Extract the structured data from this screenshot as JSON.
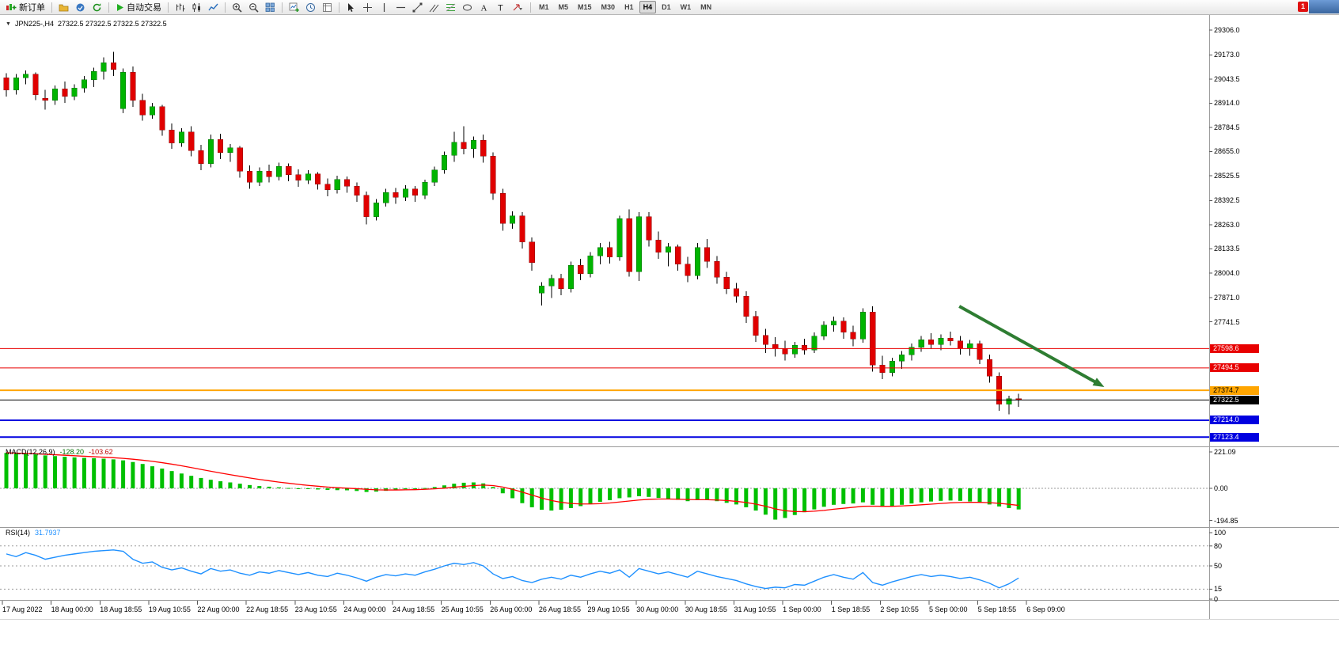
{
  "toolbar": {
    "notification_count": "1",
    "groups": [
      {
        "items": [
          {
            "name": "new-order",
            "icon": "new-order",
            "label": "新订单"
          }
        ]
      },
      {
        "items": [
          {
            "name": "charts-profile",
            "icon": "profile-yellow"
          },
          {
            "name": "market-watch",
            "icon": "quotes-blue"
          },
          {
            "name": "refresh",
            "icon": "refresh-green"
          }
        ]
      },
      {
        "items": [
          {
            "name": "auto-trading",
            "icon": "play-green",
            "label": "自动交易"
          }
        ]
      },
      {
        "items": [
          {
            "name": "bar-chart",
            "icon": "bars"
          },
          {
            "name": "candlestick-chart",
            "icon": "candles"
          },
          {
            "name": "line-chart",
            "icon": "line"
          }
        ]
      },
      {
        "items": [
          {
            "name": "zoom-in",
            "icon": "zoom-in"
          },
          {
            "name": "zoom-out",
            "icon": "zoom-out"
          },
          {
            "name": "tile-windows",
            "icon": "tile"
          }
        ]
      },
      {
        "items": [
          {
            "name": "new-chart",
            "icon": "chart-plus"
          },
          {
            "name": "period",
            "icon": "clock"
          },
          {
            "name": "templates",
            "icon": "template"
          }
        ]
      },
      {
        "items": [
          {
            "name": "cursor",
            "icon": "cursor"
          },
          {
            "name": "crosshair",
            "icon": "crosshair"
          },
          {
            "name": "vertical-line",
            "icon": "vline"
          },
          {
            "name": "horizontal-line",
            "icon": "hline"
          },
          {
            "name": "trendline",
            "icon": "trend"
          },
          {
            "name": "equidistant-channel",
            "icon": "channel"
          },
          {
            "name": "fibonacci",
            "icon": "fibo"
          },
          {
            "name": "shapes",
            "icon": "shapes"
          },
          {
            "name": "text",
            "icon": "text-a"
          },
          {
            "name": "text-label",
            "icon": "text-t"
          },
          {
            "name": "arrows",
            "icon": "arrows"
          }
        ]
      }
    ],
    "timeframes": [
      {
        "label": "M1",
        "active": false
      },
      {
        "label": "M5",
        "active": false
      },
      {
        "label": "M15",
        "active": false
      },
      {
        "label": "M30",
        "active": false
      },
      {
        "label": "H1",
        "active": false
      },
      {
        "label": "H4",
        "active": true
      },
      {
        "label": "D1",
        "active": false
      },
      {
        "label": "W1",
        "active": false
      },
      {
        "label": "MN",
        "active": false
      }
    ]
  },
  "chart": {
    "header": {
      "collapse_icon": "▼",
      "symbol_period": "JPN225-,H4",
      "ohlc": "27322.5 27322.5 27322.5 27322.5"
    }
  },
  "chart_data": {
    "type": "candlestick",
    "symbol": "JPN225-",
    "period": "H4",
    "quote": {
      "open": "27322.5",
      "high": "27322.5",
      "low": "27322.5",
      "close": "27322.5"
    },
    "colors": {
      "bull": "#00B400",
      "bear": "#E00000",
      "wick": "#000000"
    },
    "price_axis": {
      "min": 27078,
      "max": 29374,
      "ticks": [
        "29306.0",
        "29173.0",
        "29043.5",
        "28914.0",
        "28784.5",
        "28655.0",
        "28525.5",
        "28392.5",
        "28263.0",
        "28133.5",
        "28004.0",
        "27871.0",
        "27741.5"
      ]
    },
    "time_axis": {
      "labels": [
        "17 Aug 2022",
        "18 Aug 00:00",
        "18 Aug 18:55",
        "19 Aug 10:55",
        "22 Aug 00:00",
        "22 Aug 18:55",
        "23 Aug 10:55",
        "24 Aug 00:00",
        "24 Aug 18:55",
        "25 Aug 10:55",
        "26 Aug 00:00",
        "26 Aug 18:55",
        "29 Aug 10:55",
        "30 Aug 00:00",
        "30 Aug 18:55",
        "31 Aug 10:55",
        "1 Sep 00:00",
        "1 Sep 18:55",
        "2 Sep 10:55",
        "5 Sep 00:00",
        "5 Sep 18:55",
        "6 Sep 09:00"
      ]
    },
    "candles": [
      [
        29050,
        29075,
        28950,
        28985
      ],
      [
        28985,
        29070,
        28960,
        29050
      ],
      [
        29050,
        29090,
        29015,
        29070
      ],
      [
        29070,
        29080,
        28930,
        28960
      ],
      [
        28940,
        28985,
        28880,
        28930
      ],
      [
        28930,
        29010,
        28905,
        28990
      ],
      [
        28990,
        29030,
        28915,
        28950
      ],
      [
        28950,
        29015,
        28930,
        28995
      ],
      [
        28995,
        29060,
        28970,
        29040
      ],
      [
        29040,
        29105,
        29000,
        29085
      ],
      [
        29085,
        29160,
        29040,
        29130
      ],
      [
        29130,
        29190,
        29060,
        29095
      ],
      [
        28885,
        29100,
        28860,
        29080
      ],
      [
        29080,
        29110,
        28895,
        28930
      ],
      [
        28930,
        28965,
        28820,
        28850
      ],
      [
        28850,
        28915,
        28830,
        28895
      ],
      [
        28895,
        28905,
        28740,
        28770
      ],
      [
        28770,
        28805,
        28670,
        28700
      ],
      [
        28700,
        28780,
        28680,
        28760
      ],
      [
        28760,
        28790,
        28630,
        28660
      ],
      [
        28660,
        28690,
        28555,
        28590
      ],
      [
        28590,
        28745,
        28570,
        28720
      ],
      [
        28720,
        28750,
        28615,
        28650
      ],
      [
        28650,
        28695,
        28600,
        28675
      ],
      [
        28675,
        28685,
        28515,
        28550
      ],
      [
        28550,
        28580,
        28455,
        28490
      ],
      [
        28490,
        28570,
        28470,
        28550
      ],
      [
        28550,
        28585,
        28490,
        28520
      ],
      [
        28520,
        28595,
        28500,
        28575
      ],
      [
        28575,
        28590,
        28495,
        28530
      ],
      [
        28530,
        28560,
        28465,
        28500
      ],
      [
        28500,
        28555,
        28480,
        28535
      ],
      [
        28535,
        28545,
        28450,
        28480
      ],
      [
        28480,
        28510,
        28415,
        28450
      ],
      [
        28450,
        28525,
        28430,
        28505
      ],
      [
        28505,
        28520,
        28435,
        28470
      ],
      [
        28470,
        28490,
        28385,
        28420
      ],
      [
        28420,
        28440,
        28265,
        28305
      ],
      [
        28305,
        28400,
        28285,
        28380
      ],
      [
        28380,
        28455,
        28360,
        28435
      ],
      [
        28435,
        28460,
        28375,
        28410
      ],
      [
        28410,
        28475,
        28390,
        28455
      ],
      [
        28455,
        28470,
        28385,
        28420
      ],
      [
        28420,
        28505,
        28400,
        28490
      ],
      [
        28490,
        28575,
        28470,
        28555
      ],
      [
        28555,
        28655,
        28535,
        28635
      ],
      [
        28635,
        28760,
        28600,
        28705
      ],
      [
        28705,
        28790,
        28640,
        28670
      ],
      [
        28670,
        28735,
        28620,
        28715
      ],
      [
        28715,
        28745,
        28595,
        28630
      ],
      [
        28630,
        28650,
        28395,
        28430
      ],
      [
        28430,
        28455,
        28230,
        28270
      ],
      [
        28270,
        28335,
        28240,
        28310
      ],
      [
        28310,
        28330,
        28135,
        28170
      ],
      [
        28170,
        28195,
        28015,
        28060
      ],
      [
        27895,
        27955,
        27830,
        27935
      ],
      [
        27935,
        27995,
        27870,
        27975
      ],
      [
        27975,
        28000,
        27885,
        27920
      ],
      [
        27920,
        28065,
        27900,
        28045
      ],
      [
        28045,
        28080,
        27965,
        28000
      ],
      [
        28000,
        28115,
        27980,
        28095
      ],
      [
        28095,
        28165,
        28050,
        28140
      ],
      [
        28140,
        28170,
        28055,
        28090
      ],
      [
        28090,
        28310,
        28070,
        28295
      ],
      [
        28295,
        28345,
        27985,
        28010
      ],
      [
        28010,
        28330,
        27960,
        28305
      ],
      [
        28305,
        28330,
        28145,
        28180
      ],
      [
        28180,
        28225,
        28080,
        28115
      ],
      [
        28115,
        28165,
        28040,
        28145
      ],
      [
        28145,
        28155,
        28015,
        28050
      ],
      [
        28050,
        28090,
        27955,
        27990
      ],
      [
        27990,
        28165,
        27970,
        28140
      ],
      [
        28140,
        28185,
        28030,
        28065
      ],
      [
        28065,
        28095,
        27945,
        27980
      ],
      [
        27980,
        28010,
        27890,
        27920
      ],
      [
        27920,
        27950,
        27845,
        27880
      ],
      [
        27880,
        27905,
        27735,
        27770
      ],
      [
        27770,
        27800,
        27635,
        27670
      ],
      [
        27670,
        27705,
        27575,
        27620
      ],
      [
        27620,
        27660,
        27555,
        27600
      ],
      [
        27600,
        27640,
        27535,
        27570
      ],
      [
        27570,
        27635,
        27550,
        27615
      ],
      [
        27615,
        27650,
        27565,
        27590
      ],
      [
        27590,
        27685,
        27575,
        27665
      ],
      [
        27665,
        27745,
        27645,
        27725
      ],
      [
        27725,
        27770,
        27690,
        27745
      ],
      [
        27745,
        27765,
        27650,
        27685
      ],
      [
        27685,
        27720,
        27610,
        27650
      ],
      [
        27650,
        27815,
        27630,
        27795
      ],
      [
        27795,
        27825,
        27475,
        27510
      ],
      [
        27510,
        27560,
        27435,
        27470
      ],
      [
        27470,
        27550,
        27450,
        27530
      ],
      [
        27530,
        27585,
        27490,
        27565
      ],
      [
        27565,
        27625,
        27535,
        27605
      ],
      [
        27605,
        27665,
        27580,
        27645
      ],
      [
        27645,
        27680,
        27595,
        27620
      ],
      [
        27620,
        27675,
        27590,
        27655
      ],
      [
        27655,
        27690,
        27615,
        27640
      ],
      [
        27640,
        27665,
        27565,
        27600
      ],
      [
        27600,
        27645,
        27560,
        27625
      ],
      [
        27625,
        27640,
        27515,
        27540
      ],
      [
        27540,
        27565,
        27415,
        27450
      ],
      [
        27450,
        27470,
        27265,
        27300
      ],
      [
        27300,
        27345,
        27245,
        27330
      ],
      [
        27330,
        27355,
        27285,
        27322.5
      ]
    ],
    "price_lines": [
      {
        "value": 27598.6,
        "label": "27598.6",
        "color": "#E80000",
        "text": "#ffffff",
        "width": 1,
        "role": "resistance-line"
      },
      {
        "value": 27494.5,
        "label": "27494.5",
        "color": "#E80000",
        "text": "#ffffff",
        "width": 1,
        "role": "resistance-line"
      },
      {
        "value": 27374.7,
        "label": "27374.7",
        "color": "#FFA500",
        "text": "#000000",
        "width": 2,
        "role": "support-line"
      },
      {
        "value": 27322.5,
        "label": "27322.5",
        "color": "#000000",
        "text": "#ffffff",
        "width": 1,
        "role": "current-price-line"
      },
      {
        "value": 27214.0,
        "label": "27214.0",
        "color": "#0000E0",
        "text": "#ffffff",
        "width": 2,
        "role": "support-line"
      },
      {
        "value": 27123.4,
        "label": "27123.4",
        "color": "#0000E0",
        "text": "#ffffff",
        "width": 2,
        "role": "support-line"
      }
    ],
    "macd": {
      "label": "MACD(12,26,9)",
      "value_main": "-128.20",
      "value_signal": "-103.62",
      "scale_ticks": [
        "221.09",
        "0.00",
        "-194.85"
      ],
      "colors": {
        "histogram": "#00C000",
        "signal": "#FF0000"
      },
      "histogram": [
        215,
        212,
        210,
        206,
        200,
        196,
        192,
        188,
        185,
        183,
        180,
        176,
        170,
        160,
        148,
        134,
        120,
        105,
        90,
        76,
        63,
        52,
        43,
        36,
        28,
        20,
        14,
        10,
        6,
        2,
        -2,
        -4,
        -7,
        -10,
        -11,
        -12,
        -16,
        -22,
        -20,
        -15,
        -10,
        -6,
        -3,
        2,
        8,
        18,
        28,
        34,
        36,
        30,
        8,
        -30,
        -60,
        -90,
        -115,
        -130,
        -135,
        -130,
        -120,
        -108,
        -95,
        -82,
        -72,
        -60,
        -55,
        -48,
        -52,
        -58,
        -63,
        -70,
        -78,
        -72,
        -70,
        -78,
        -88,
        -98,
        -115,
        -135,
        -160,
        -190,
        -180,
        -162,
        -145,
        -128,
        -112,
        -100,
        -95,
        -92,
        -85,
        -100,
        -112,
        -108,
        -100,
        -92,
        -85,
        -80,
        -76,
        -74,
        -76,
        -80,
        -88,
        -98,
        -110,
        -120,
        -128.2
      ],
      "signal": [
        216,
        214,
        212,
        210,
        207,
        204,
        201,
        198,
        195,
        192,
        189,
        186,
        182,
        177,
        171,
        164,
        156,
        147,
        137,
        126,
        115,
        104,
        93,
        83,
        73,
        63,
        54,
        46,
        38,
        31,
        24,
        18,
        13,
        8,
        4,
        1,
        -2,
        -6,
        -9,
        -10,
        -10,
        -9,
        -8,
        -6,
        -3,
        1,
        7,
        12,
        17,
        20,
        17,
        8,
        -6,
        -23,
        -41,
        -59,
        -74,
        -85,
        -92,
        -95,
        -95,
        -93,
        -89,
        -83,
        -77,
        -71,
        -67,
        -65,
        -65,
        -66,
        -68,
        -69,
        -69,
        -71,
        -74,
        -79,
        -86,
        -96,
        -109,
        -125,
        -136,
        -141,
        -142,
        -139,
        -134,
        -127,
        -121,
        -115,
        -109,
        -108,
        -109,
        -109,
        -107,
        -104,
        -100,
        -96,
        -92,
        -88,
        -86,
        -85,
        -85,
        -87,
        -91,
        -97,
        -103.62
      ]
    },
    "rsi": {
      "label": "RSI(14)",
      "value": "31.7937",
      "color": "#1E90FF",
      "levels": [
        80,
        50,
        15
      ],
      "scale_ticks": [
        "100",
        "80",
        "50",
        "15",
        "0"
      ],
      "values": [
        68,
        64,
        70,
        66,
        60,
        63,
        66,
        68,
        70,
        72,
        73,
        74,
        72,
        60,
        54,
        56,
        48,
        44,
        47,
        42,
        38,
        46,
        42,
        44,
        39,
        36,
        41,
        39,
        43,
        40,
        37,
        40,
        36,
        34,
        39,
        36,
        32,
        27,
        33,
        37,
        35,
        38,
        36,
        41,
        45,
        50,
        54,
        52,
        55,
        50,
        38,
        31,
        34,
        28,
        25,
        30,
        33,
        30,
        36,
        33,
        38,
        42,
        39,
        44,
        33,
        46,
        42,
        38,
        41,
        37,
        33,
        42,
        38,
        34,
        31,
        28,
        23,
        19,
        16,
        18,
        17,
        22,
        21,
        27,
        33,
        37,
        33,
        30,
        40,
        25,
        21,
        26,
        30,
        34,
        37,
        34,
        36,
        34,
        31,
        33,
        29,
        24,
        17,
        23,
        31.79
      ]
    },
    "annotation_arrow": {
      "from_bar": 97.9,
      "from_price": 27825,
      "to_bar": 112.8,
      "to_price": 27392,
      "color": "#2E7D32"
    }
  }
}
